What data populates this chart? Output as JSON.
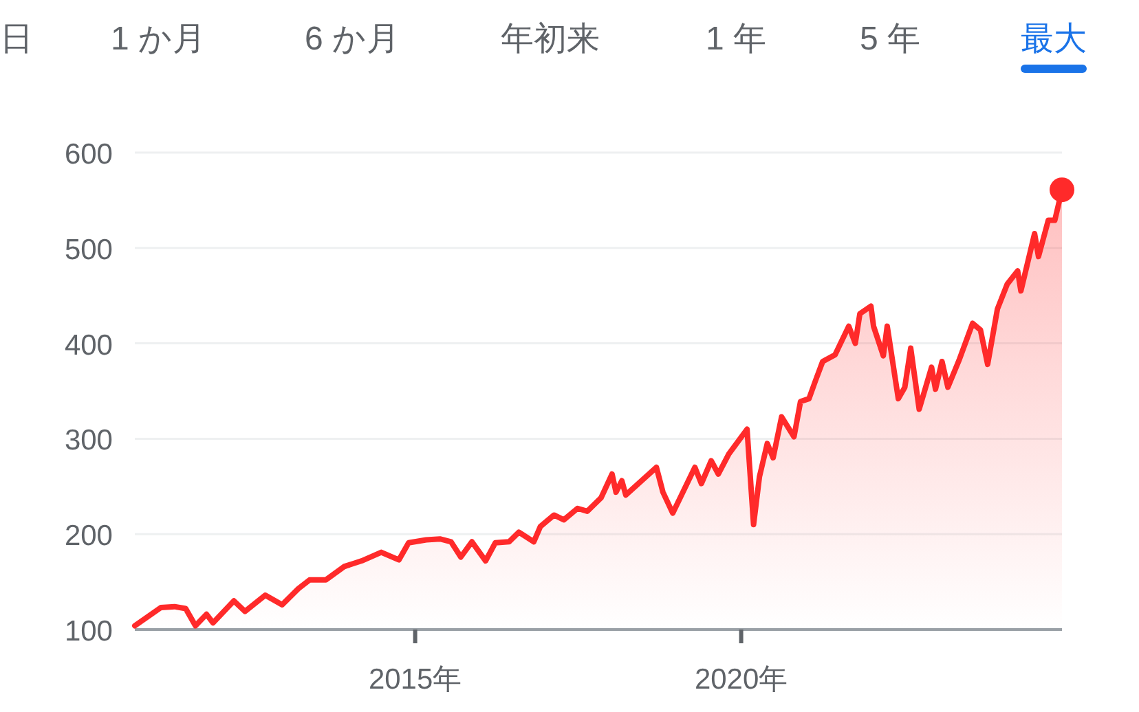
{
  "chart_data": {
    "type": "area",
    "annotations": [
      "日",
      "1 か月",
      "6 か月",
      "年初来",
      "1 年",
      "5 年",
      "最大"
    ],
    "series": [
      {
        "color": "#ff2a2a",
        "x": [
          2010.7,
          2011.1,
          2011.31,
          2011.48,
          2011.63,
          2011.8,
          2011.9,
          2012.22,
          2012.39,
          2012.7,
          2012.96,
          2013.21,
          2013.38,
          2013.63,
          2013.91,
          2014.18,
          2014.48,
          2014.75,
          2014.9,
          2015.17,
          2015.38,
          2015.55,
          2015.7,
          2015.87,
          2016.08,
          2016.23,
          2016.44,
          2016.59,
          2016.82,
          2016.92,
          2017.13,
          2017.28,
          2017.49,
          2017.64,
          2017.85,
          2018.02,
          2018.08,
          2018.17,
          2018.23,
          2018.7,
          2018.8,
          2018.95,
          2019.29,
          2019.39,
          2019.54,
          2019.65,
          2019.81,
          2020.09,
          2020.19,
          2020.28,
          2020.4,
          2020.49,
          2020.62,
          2020.81,
          2020.91,
          2021.04,
          2021.14,
          2021.25,
          2021.44,
          2021.65,
          2021.75,
          2021.82,
          2021.99,
          2022.03,
          2022.18,
          2022.24,
          2022.41,
          2022.51,
          2022.6,
          2022.73,
          2022.92,
          2022.98,
          2023.08,
          2023.17,
          2023.34,
          2023.55,
          2023.67,
          2023.78,
          2023.93,
          2024.08,
          2024.24,
          2024.29,
          2024.5,
          2024.56,
          2024.71,
          2024.81,
          2024.92
        ],
        "values": [
          104,
          123,
          124,
          122,
          104,
          116,
          107,
          130,
          119,
          136,
          126,
          143,
          152,
          152,
          166,
          172,
          181,
          173,
          191,
          194,
          195,
          192,
          176,
          192,
          172,
          191,
          192,
          202,
          192,
          208,
          220,
          215,
          227,
          224,
          238,
          263,
          244,
          256,
          241,
          270,
          244,
          222,
          270,
          253,
          277,
          263,
          284,
          310,
          210,
          260,
          295,
          280,
          323,
          302,
          339,
          342,
          361,
          381,
          388,
          418,
          400,
          431,
          439,
          418,
          387,
          418,
          342,
          354,
          395,
          331,
          375,
          352,
          381,
          354,
          382,
          421,
          414,
          378,
          436,
          462,
          476,
          455,
          515,
          491,
          529,
          529,
          561
        ]
      }
    ],
    "xlim": [
      2010.7,
      2024.92
    ],
    "xticks": [
      {
        "value": 2015,
        "label": "2015年"
      },
      {
        "value": 2020,
        "label": "2020年"
      }
    ],
    "ylim": [
      100,
      600
    ],
    "yticks": [
      100,
      200,
      300,
      400,
      500,
      600
    ],
    "grid": "y"
  }
}
